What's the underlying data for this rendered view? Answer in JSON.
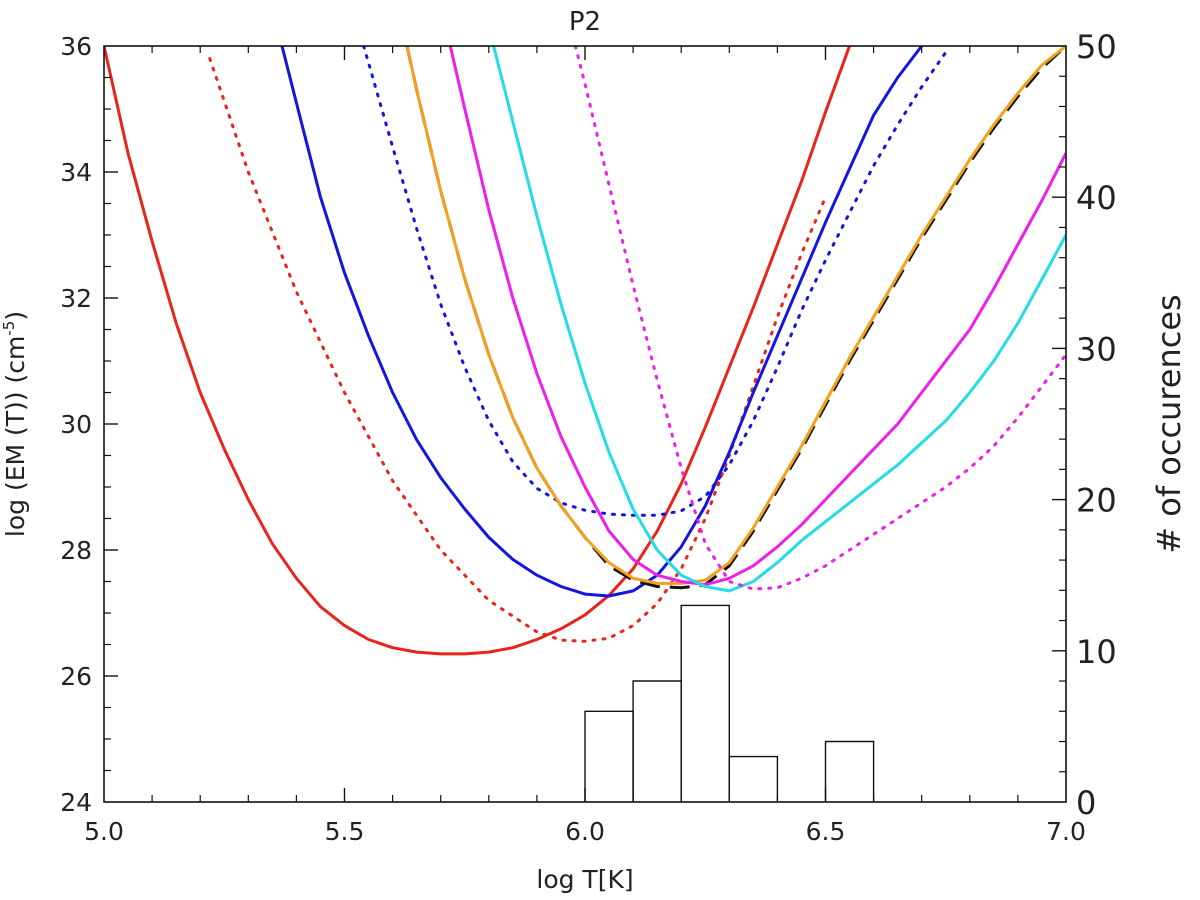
{
  "chart_data": {
    "type": "line",
    "title": "P2",
    "xlabel": "log T[K]",
    "ylabel_left": "log (EM (T)) (cm",
    "ylabel_left_sup": "-5",
    "ylabel_left_end": ")",
    "ylabel_right": "# of occurences",
    "xlim": [
      5.0,
      7.0
    ],
    "ylim": [
      24,
      36
    ],
    "y2lim": [
      0,
      50
    ],
    "x_ticks": [
      "5.0",
      "5.5",
      "6.0",
      "6.5",
      "7.0"
    ],
    "y_ticks": [
      "24",
      "26",
      "28",
      "30",
      "32",
      "34",
      "36"
    ],
    "y2_ticks": [
      "0",
      "10",
      "20",
      "30",
      "40",
      "50"
    ],
    "grid": false,
    "series": [
      {
        "color": "#e8241b",
        "style": "solid",
        "x": [
          5.0,
          5.05,
          5.1,
          5.15,
          5.2,
          5.25,
          5.3,
          5.35,
          5.4,
          5.45,
          5.5,
          5.55,
          5.6,
          5.65,
          5.7,
          5.75,
          5.8,
          5.85,
          5.9,
          5.95,
          6.0,
          6.05,
          6.1,
          6.15,
          6.2,
          6.25,
          6.3,
          6.35,
          6.4,
          6.45,
          6.5,
          6.55
        ],
        "y": [
          36.0,
          34.3,
          32.9,
          31.6,
          30.5,
          29.6,
          28.8,
          28.1,
          27.55,
          27.1,
          26.8,
          26.58,
          26.45,
          26.38,
          26.35,
          26.35,
          26.38,
          26.45,
          26.58,
          26.75,
          26.97,
          27.28,
          27.7,
          28.3,
          29.05,
          29.95,
          30.9,
          31.85,
          32.85,
          33.85,
          34.95,
          36.0
        ]
      },
      {
        "color": "#e8241b",
        "style": "dotted",
        "x": [
          5.22,
          5.3,
          5.4,
          5.5,
          5.6,
          5.7,
          5.8,
          5.9,
          5.95,
          6.0,
          6.05,
          6.1,
          6.15,
          6.2,
          6.25,
          6.3,
          6.35,
          6.4,
          6.45,
          6.5
        ],
        "y": [
          35.8,
          34.0,
          32.1,
          30.5,
          29.1,
          28.0,
          27.2,
          26.7,
          26.57,
          26.55,
          26.6,
          26.8,
          27.15,
          27.7,
          28.5,
          29.5,
          30.6,
          31.7,
          32.7,
          33.6
        ]
      },
      {
        "color": "#1515e0",
        "style": "solid",
        "x": [
          5.37,
          5.4,
          5.45,
          5.5,
          5.55,
          5.6,
          5.65,
          5.7,
          5.75,
          5.8,
          5.85,
          5.9,
          5.95,
          6.0,
          6.05,
          6.1,
          6.15,
          6.2,
          6.25,
          6.3,
          6.35,
          6.4,
          6.45,
          6.5,
          6.55,
          6.6,
          6.65,
          6.7
        ],
        "y": [
          36.0,
          35.1,
          33.6,
          32.4,
          31.4,
          30.5,
          29.75,
          29.15,
          28.65,
          28.2,
          27.85,
          27.6,
          27.42,
          27.3,
          27.27,
          27.35,
          27.6,
          28.05,
          28.7,
          29.55,
          30.5,
          31.4,
          32.3,
          33.2,
          34.05,
          34.9,
          35.5,
          36.0
        ]
      },
      {
        "color": "#1515e0",
        "style": "dotted",
        "x": [
          5.54,
          5.6,
          5.65,
          5.7,
          5.75,
          5.8,
          5.85,
          5.9,
          5.95,
          6.0,
          6.05,
          6.1,
          6.15,
          6.2,
          6.25,
          6.3,
          6.35,
          6.4,
          6.45,
          6.5,
          6.55,
          6.6,
          6.65,
          6.7,
          6.75
        ],
        "y": [
          36.0,
          34.4,
          33.1,
          31.9,
          30.9,
          30.05,
          29.4,
          28.98,
          28.75,
          28.63,
          28.57,
          28.55,
          28.55,
          28.62,
          28.85,
          29.35,
          30.05,
          30.9,
          31.8,
          32.6,
          33.35,
          34.1,
          34.75,
          35.35,
          35.9
        ]
      },
      {
        "color": "#111111",
        "style": "dashed",
        "x": [
          5.63,
          5.65,
          5.7,
          5.75,
          5.8,
          5.85,
          5.9,
          5.95,
          6.0,
          6.05,
          6.1,
          6.15,
          6.2,
          6.25,
          6.3,
          6.35,
          6.4,
          6.45,
          6.5,
          6.55,
          6.6,
          6.65,
          6.7,
          6.75,
          6.8,
          6.85,
          6.9,
          6.95,
          7.0
        ],
        "y": [
          36.0,
          35.3,
          33.7,
          32.3,
          31.1,
          30.1,
          29.3,
          28.7,
          28.2,
          27.75,
          27.52,
          27.42,
          27.4,
          27.45,
          27.75,
          28.3,
          28.95,
          29.6,
          30.3,
          31.0,
          31.65,
          32.3,
          32.95,
          33.55,
          34.15,
          34.7,
          35.2,
          35.65,
          36.0
        ]
      },
      {
        "color": "#f2a01e",
        "style": "solid",
        "x": [
          5.63,
          5.65,
          5.7,
          5.75,
          5.8,
          5.85,
          5.9,
          5.95,
          6.0,
          6.05,
          6.1,
          6.15,
          6.2,
          6.25,
          6.3,
          6.35,
          6.4,
          6.45,
          6.5,
          6.55,
          6.6,
          6.65,
          6.7,
          6.75,
          6.8,
          6.85,
          6.9,
          6.95,
          7.0
        ],
        "y": [
          36.0,
          35.3,
          33.7,
          32.3,
          31.1,
          30.1,
          29.3,
          28.7,
          28.2,
          27.8,
          27.55,
          27.47,
          27.47,
          27.52,
          27.8,
          28.35,
          29.0,
          29.65,
          30.35,
          31.05,
          31.7,
          32.35,
          33.0,
          33.6,
          34.2,
          34.75,
          35.25,
          35.7,
          36.0
        ]
      },
      {
        "color": "#ee1fe8",
        "style": "solid",
        "x": [
          5.72,
          5.75,
          5.8,
          5.85,
          5.9,
          5.95,
          6.0,
          6.05,
          6.1,
          6.15,
          6.2,
          6.25,
          6.3,
          6.35,
          6.4,
          6.45,
          6.5,
          6.55,
          6.6,
          6.65,
          6.7,
          6.75,
          6.8,
          6.85,
          6.9,
          6.95,
          7.0
        ],
        "y": [
          36.0,
          35.0,
          33.4,
          32.0,
          30.8,
          29.8,
          29.0,
          28.3,
          27.85,
          27.6,
          27.5,
          27.45,
          27.55,
          27.75,
          28.05,
          28.4,
          28.8,
          29.2,
          29.6,
          30.0,
          30.5,
          31.0,
          31.5,
          32.15,
          32.85,
          33.55,
          34.3
        ]
      },
      {
        "color": "#22dce6",
        "style": "solid",
        "x": [
          5.81,
          5.85,
          5.9,
          5.95,
          6.0,
          6.05,
          6.1,
          6.15,
          6.2,
          6.25,
          6.3,
          6.35,
          6.4,
          6.45,
          6.5,
          6.55,
          6.6,
          6.65,
          6.7,
          6.75,
          6.8,
          6.85,
          6.9,
          6.95,
          7.0
        ],
        "y": [
          36.0,
          34.8,
          33.3,
          31.9,
          30.65,
          29.55,
          28.65,
          28.0,
          27.6,
          27.42,
          27.35,
          27.5,
          27.8,
          28.15,
          28.45,
          28.75,
          29.05,
          29.35,
          29.7,
          30.05,
          30.5,
          31.0,
          31.6,
          32.3,
          33.0
        ]
      },
      {
        "color": "#ee1fe8",
        "style": "dotted",
        "x": [
          5.98,
          6.0,
          6.05,
          6.1,
          6.15,
          6.2,
          6.25,
          6.3,
          6.35,
          6.4,
          6.45,
          6.5,
          6.55,
          6.6,
          6.65,
          6.7,
          6.75,
          6.8,
          6.85,
          6.9,
          6.95,
          7.0
        ],
        "y": [
          36.0,
          35.4,
          33.8,
          32.2,
          30.7,
          29.3,
          28.1,
          27.5,
          27.38,
          27.4,
          27.55,
          27.75,
          28.0,
          28.25,
          28.5,
          28.75,
          29.0,
          29.3,
          29.65,
          30.1,
          30.6,
          31.1
        ]
      }
    ],
    "histogram": {
      "bin_edges": [
        6.0,
        6.1,
        6.2,
        6.3,
        6.4,
        6.5,
        6.6
      ],
      "counts": [
        6,
        8,
        13,
        3,
        0,
        4
      ]
    }
  }
}
